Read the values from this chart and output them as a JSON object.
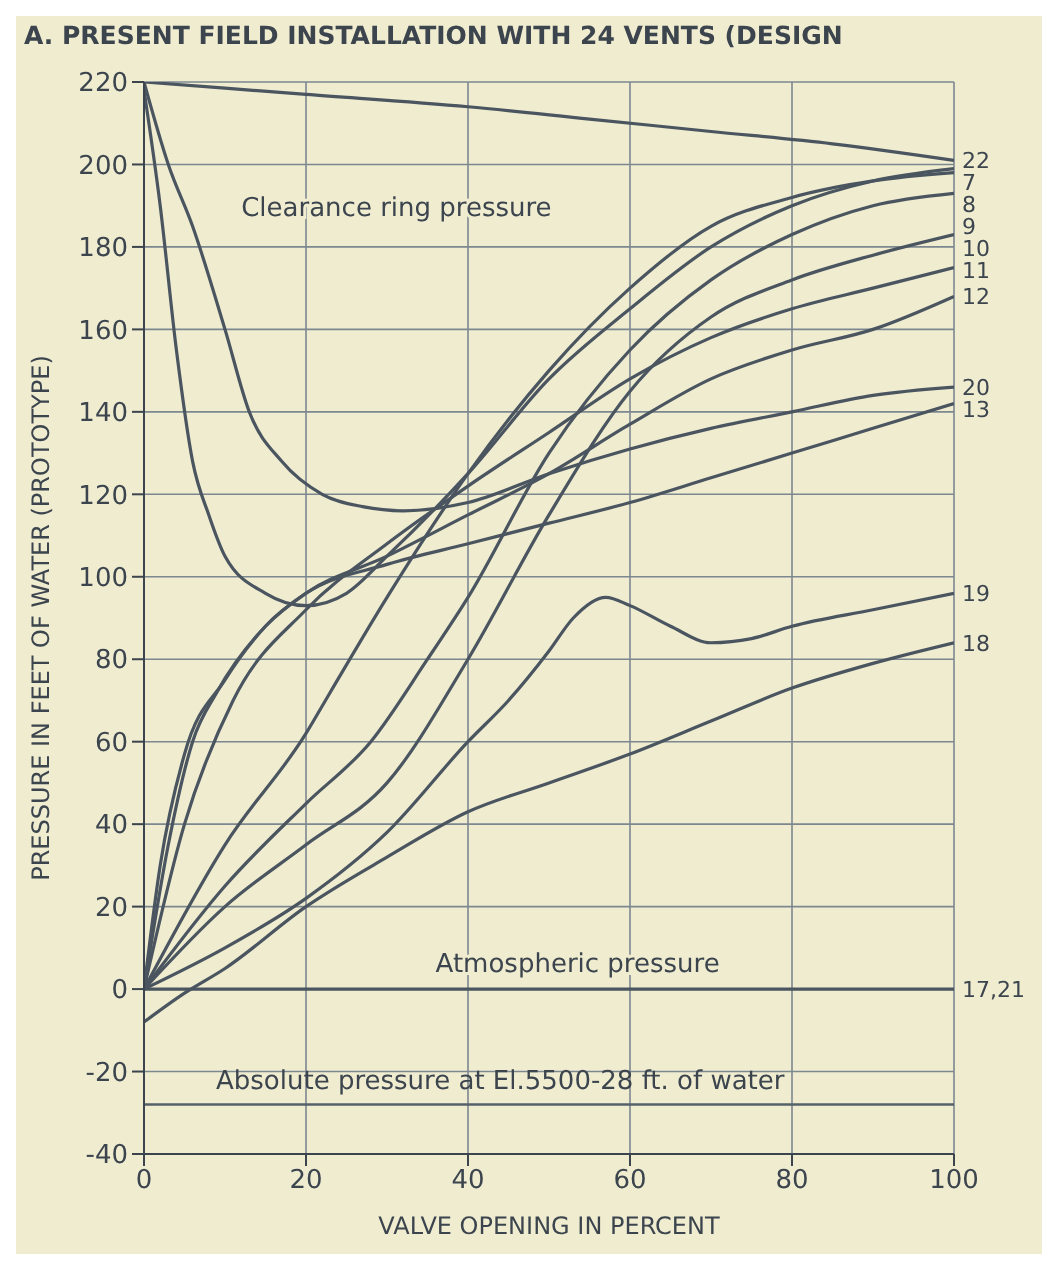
{
  "chart_data": {
    "type": "line",
    "title": "A. PRESENT FIELD INSTALLATION WITH 24 VENTS (DESIGN",
    "xlabel": "VALVE OPENING IN PERCENT",
    "ylabel": "PRESSURE IN FEET OF WATER (PROTOTYPE)",
    "xlim": [
      0,
      100
    ],
    "ylim": [
      -40,
      220
    ],
    "xticks": [
      0,
      20,
      40,
      60,
      80,
      100
    ],
    "yticks": [
      -40,
      -20,
      0,
      20,
      40,
      60,
      80,
      100,
      120,
      140,
      160,
      180,
      200,
      220
    ],
    "grid": true,
    "legend": false,
    "annotations": [
      "Clearance ring pressure",
      "Atmospheric pressure"
    ],
    "ref_lines": [
      {
        "axis": "y",
        "value": -28,
        "label": "Absolute pressure at El.5500-28 ft. of water",
        "color": "#55606a"
      }
    ],
    "series": [
      {
        "name": "22",
        "color": "#4a5560",
        "x": [
          0,
          20,
          40,
          55,
          70,
          85,
          100
        ],
        "values": [
          220,
          217,
          214,
          211,
          208,
          205,
          201
        ]
      },
      {
        "name": "7",
        "color": "#4a5560",
        "x": [
          0,
          2,
          4,
          6,
          8,
          10,
          15,
          20,
          25,
          30,
          40,
          50,
          60,
          70,
          80,
          90,
          100
        ],
        "values": [
          218,
          190,
          155,
          128,
          115,
          105,
          96,
          93,
          96,
          105,
          125,
          148,
          165,
          180,
          190,
          196,
          199
        ]
      },
      {
        "name": "8",
        "color": "#4a5560",
        "x": [
          0,
          10,
          20,
          23,
          30,
          40,
          50,
          60,
          70,
          80,
          90,
          100
        ],
        "values": [
          0,
          35,
          62,
          72,
          95,
          125,
          150,
          170,
          185,
          192,
          196,
          198
        ]
      },
      {
        "name": "9",
        "color": "#4a5560",
        "x": [
          0,
          10,
          20,
          28,
          35,
          40,
          50,
          60,
          70,
          80,
          90,
          100
        ],
        "values": [
          0,
          25,
          45,
          60,
          80,
          95,
          130,
          155,
          172,
          183,
          190,
          193
        ]
      },
      {
        "name": "10",
        "color": "#4a5560",
        "x": [
          0,
          10,
          20,
          30,
          40,
          50,
          60,
          70,
          80,
          90,
          100
        ],
        "values": [
          0,
          20,
          35,
          50,
          80,
          115,
          145,
          163,
          172,
          178,
          183
        ]
      },
      {
        "name": "11",
        "color": "#4a5560",
        "x": [
          0,
          5,
          11,
          20,
          30,
          40,
          50,
          60,
          70,
          80,
          90,
          100
        ],
        "values": [
          0,
          40,
          70,
          92,
          108,
          122,
          135,
          148,
          158,
          165,
          170,
          175
        ]
      },
      {
        "name": "12",
        "color": "#4a5560",
        "x": [
          0,
          3,
          6,
          9,
          15,
          20,
          30,
          40,
          50,
          60,
          70,
          80,
          90,
          100
        ],
        "values": [
          0,
          35,
          60,
          72,
          88,
          96,
          105,
          115,
          125,
          137,
          148,
          155,
          160,
          168
        ]
      },
      {
        "name": "20",
        "color": "#4a5560",
        "x": [
          0,
          3,
          6,
          10,
          13,
          17,
          22,
          27,
          32,
          40,
          50,
          60,
          70,
          80,
          90,
          100
        ],
        "values": [
          220,
          200,
          185,
          160,
          140,
          128,
          120,
          117,
          116,
          118,
          125,
          131,
          136,
          140,
          144,
          146
        ]
      },
      {
        "name": "13",
        "color": "#4a5560",
        "x": [
          0,
          2,
          5,
          10,
          15,
          20,
          30,
          40,
          50,
          60,
          70,
          80,
          90,
          100
        ],
        "values": [
          0,
          30,
          57,
          75,
          88,
          96,
          103,
          108,
          113,
          118,
          124,
          130,
          136,
          142
        ]
      },
      {
        "name": "19",
        "color": "#4a5560",
        "x": [
          0,
          10,
          20,
          30,
          40,
          45,
          50,
          53,
          57,
          60,
          65,
          70,
          75,
          80,
          90,
          100
        ],
        "values": [
          0,
          10,
          22,
          38,
          60,
          70,
          82,
          90,
          95,
          93,
          88,
          84,
          85,
          88,
          92,
          96
        ]
      },
      {
        "name": "18",
        "color": "#4a5560",
        "x": [
          0,
          5,
          10,
          20,
          30,
          40,
          50,
          60,
          70,
          80,
          90,
          100
        ],
        "values": [
          -8,
          -1,
          5,
          20,
          32,
          43,
          50,
          57,
          65,
          73,
          79,
          84
        ]
      },
      {
        "name": "17,21",
        "color": "#4a5560",
        "x": [
          0,
          100
        ],
        "values": [
          0,
          0
        ]
      }
    ]
  }
}
